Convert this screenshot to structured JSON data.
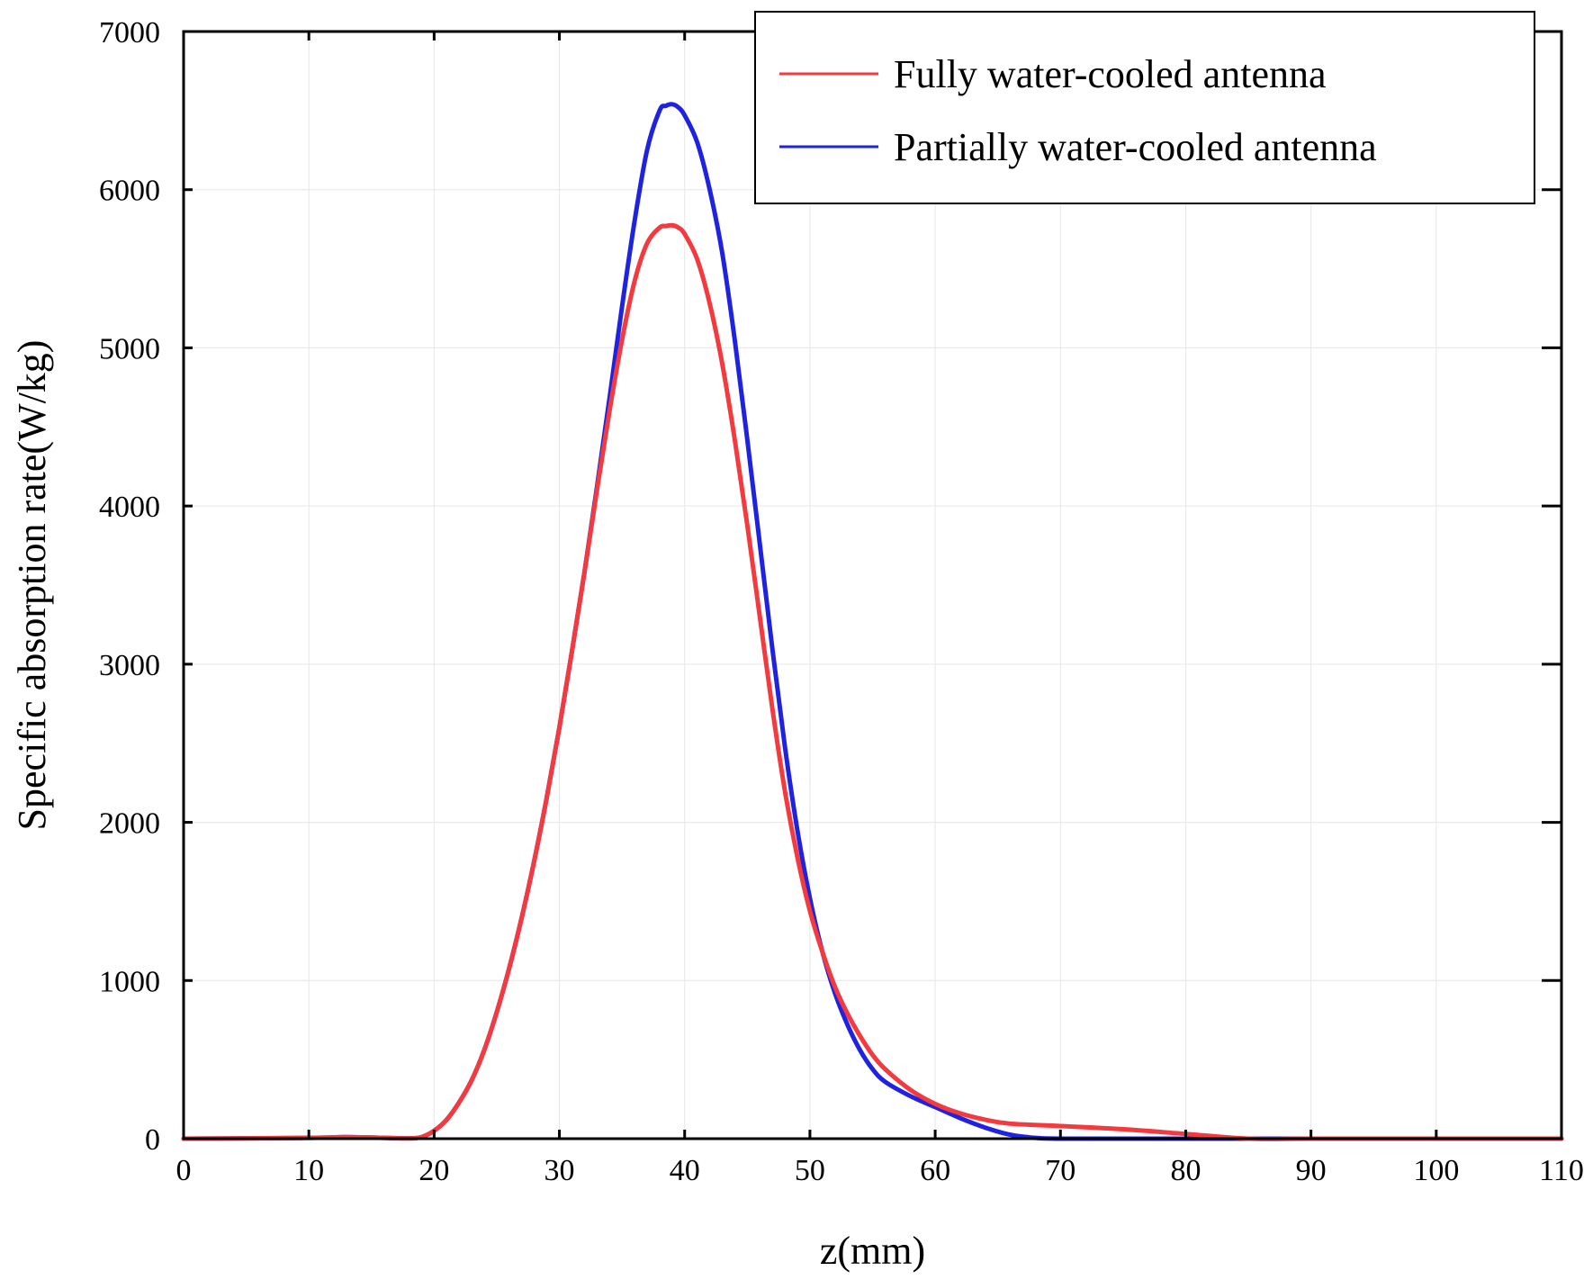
{
  "chart_data": {
    "type": "line",
    "title": "",
    "xlabel": "z(mm)",
    "ylabel": "Specific absorption rate(W/kg)",
    "xlim": [
      0,
      110
    ],
    "ylim": [
      0,
      7000
    ],
    "xticks": [
      0,
      10,
      20,
      30,
      40,
      50,
      60,
      70,
      80,
      90,
      100,
      110
    ],
    "yticks": [
      0,
      1000,
      2000,
      3000,
      4000,
      5000,
      6000,
      7000
    ],
    "grid": true,
    "legend_position": "top-right",
    "series": [
      {
        "name": "Partially water-cooled antenna",
        "color": "#1f23e0",
        "x": [
          0,
          10,
          13,
          16,
          18,
          19,
          20,
          21,
          22,
          23,
          24,
          25,
          26,
          27,
          28,
          29,
          30,
          31,
          32,
          33,
          34,
          35,
          36,
          37,
          38,
          38.5,
          39,
          39.5,
          40,
          41,
          42,
          43,
          44,
          45,
          46,
          47,
          48,
          49,
          50,
          51,
          52,
          53,
          54,
          55,
          56,
          58,
          60,
          62,
          64,
          66,
          68,
          70,
          75,
          80,
          85,
          90,
          100,
          110
        ],
        "y": [
          0,
          5,
          10,
          5,
          2,
          10,
          50,
          120,
          230,
          370,
          560,
          800,
          1080,
          1400,
          1760,
          2160,
          2600,
          3080,
          3580,
          4120,
          4680,
          5260,
          5800,
          6250,
          6500,
          6530,
          6540,
          6520,
          6470,
          6300,
          6000,
          5600,
          5050,
          4420,
          3760,
          3100,
          2480,
          1950,
          1520,
          1180,
          920,
          720,
          560,
          440,
          360,
          270,
          200,
          130,
          70,
          25,
          5,
          0,
          0,
          0,
          0,
          0,
          0,
          0
        ]
      },
      {
        "name": "Fully water-cooled antenna",
        "color": "#f23a3f",
        "x": [
          0,
          10,
          13,
          16,
          18,
          19,
          20,
          21,
          22,
          23,
          24,
          25,
          26,
          27,
          28,
          29,
          30,
          31,
          32,
          33,
          34,
          35,
          36,
          37,
          38,
          38.5,
          39,
          39.5,
          40,
          41,
          42,
          43,
          44,
          45,
          46,
          47,
          48,
          49,
          50,
          51,
          52,
          53,
          54,
          55,
          56,
          58,
          60,
          62,
          64,
          66,
          70,
          75,
          80,
          85,
          90,
          100,
          110
        ],
        "y": [
          0,
          5,
          10,
          5,
          2,
          10,
          50,
          120,
          230,
          370,
          560,
          800,
          1080,
          1400,
          1760,
          2160,
          2600,
          3080,
          3580,
          4100,
          4600,
          5050,
          5420,
          5660,
          5760,
          5770,
          5775,
          5760,
          5720,
          5560,
          5280,
          4900,
          4420,
          3880,
          3300,
          2720,
          2200,
          1780,
          1440,
          1180,
          960,
          790,
          650,
          530,
          440,
          310,
          220,
          160,
          120,
          95,
          80,
          60,
          30,
          0,
          0,
          0,
          0
        ]
      }
    ]
  }
}
